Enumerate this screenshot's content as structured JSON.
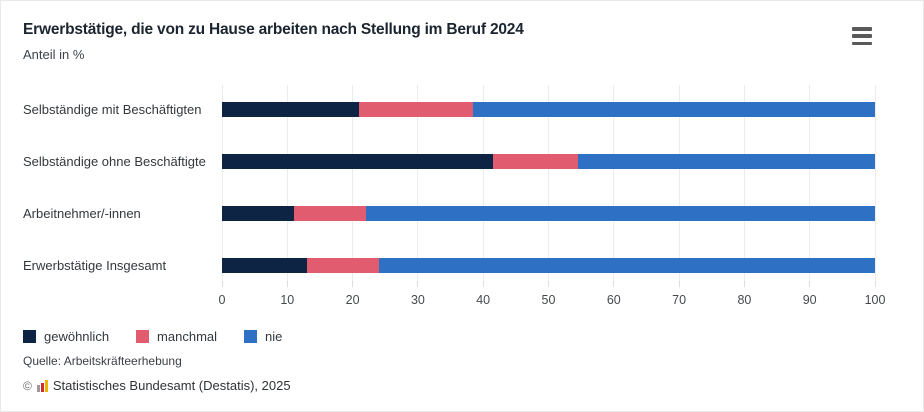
{
  "header": {
    "title": "Erwerbstätige, die von zu Hause arbeiten nach Stellung im Beruf 2024",
    "subtitle": "Anteil in %"
  },
  "menu": {
    "icon": "hamburger-menu"
  },
  "chart_data": {
    "type": "bar",
    "orientation": "horizontal",
    "stacked": true,
    "title": "Erwerbstätige, die von zu Hause arbeiten nach Stellung im Beruf 2024",
    "subtitle_unit": "Anteil in %",
    "categories": [
      "Selbständige mit Beschäftigten",
      "Selbständige ohne Beschäftigte",
      "Arbeitnehmer/-innen",
      "Erwerbstätige Insgesamt"
    ],
    "series": [
      {
        "name": "gewöhnlich",
        "color": "#0d2445",
        "values": [
          21,
          41.5,
          11,
          13
        ]
      },
      {
        "name": "manchmal",
        "color": "#e25c6f",
        "values": [
          17.5,
          13,
          11,
          11
        ]
      },
      {
        "name": "nie",
        "color": "#2d70c4",
        "values": [
          61.5,
          45.5,
          78,
          76
        ]
      }
    ],
    "xlim": [
      0,
      100
    ],
    "xticks": [
      0,
      10,
      20,
      30,
      40,
      50,
      60,
      70,
      80,
      90,
      100
    ],
    "grid": "vertical",
    "legend_position": "bottom-left"
  },
  "source": "Quelle: Arbeitskräfteerhebung",
  "footer": {
    "copyright_symbol": "©",
    "text": "Statistisches Bundesamt (Destatis), 2025",
    "logo_bar_colors": [
      "#9b9b9b",
      "#d02c2f",
      "#f0b400"
    ],
    "logo_bar_heights": [
      7,
      9,
      12
    ]
  }
}
